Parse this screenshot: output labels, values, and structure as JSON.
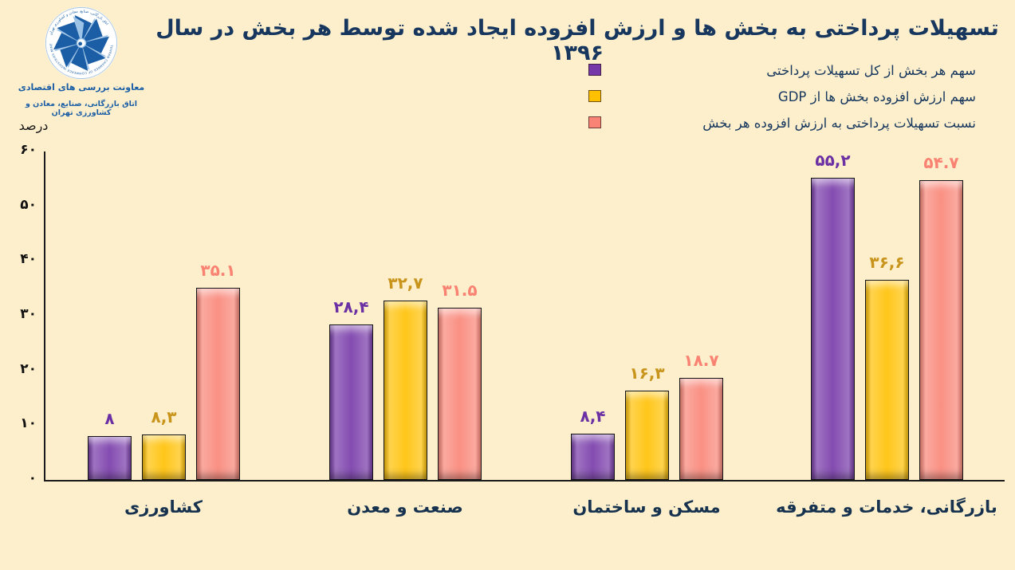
{
  "page": {
    "title": "تسهیلات پرداختی به بخش ها و ارزش افزوده ایجاد شده توسط هر بخش در سال ۱۳۹۶",
    "background_color": "#FDEFCB",
    "title_color": "#17375E"
  },
  "logo": {
    "name": "اتاق بازرگانی، صنایع، معادن و کشاورزی تهران",
    "caption_line1": "معاونت بررسی های اقتصادی",
    "caption_line2": "اتاق بازرگانی، صنایع، معادن و کشاورزی تهران",
    "ring_text_fa": "اتاق بازرگانی، صنایع، معادن و کشاورزی تهران",
    "ring_text_en": "TEHRAN CHAMBER OF COMMERCE INDUSTRIES MINES AND AGRICULTURE",
    "dark_blue": "#1B5EA6",
    "light_blue": "#9DC3E6"
  },
  "chart_data": {
    "type": "bar",
    "title": "تسهیلات پرداختی به بخش ها و ارزش افزوده ایجاد شده توسط هر بخش در سال ۱۳۹۶",
    "xlabel": "",
    "ylabel": "درصد",
    "ylim": [
      0,
      60
    ],
    "grid": false,
    "legend_position": "top-right",
    "yticks": [
      {
        "value": 60,
        "label": "۶۰"
      },
      {
        "value": 50,
        "label": "۵۰"
      },
      {
        "value": 40,
        "label": "۴۰"
      },
      {
        "value": 30,
        "label": "۳۰"
      },
      {
        "value": 20,
        "label": "۲۰"
      },
      {
        "value": 10,
        "label": "۱۰"
      },
      {
        "value": 0,
        "label": "۰"
      }
    ],
    "categories": [
      "کشاورزی",
      "صنعت و معدن",
      "مسکن و ساختمان",
      "بازرگانی، خدمات و متفرقه"
    ],
    "series": [
      {
        "key": "share-of-total-facilities",
        "name": "سهم هر بخش از کل تسهیلات پرداختی",
        "color": "#7638A8",
        "label_color": "#6B30A4",
        "values": [
          8,
          28.4,
          8.4,
          55.2
        ],
        "value_labels": [
          "۸",
          "۲۸,۴",
          "۸,۴",
          "۵۵,۲"
        ]
      },
      {
        "key": "value-added-share-of-gdp",
        "name": "سهم ارزش افزوده بخش ها از GDP",
        "color": "#FFC000",
        "label_color": "#C9941C",
        "values": [
          8.3,
          32.7,
          16.3,
          36.6
        ],
        "value_labels": [
          "۸,۳",
          "۳۲,۷",
          "۱۶,۳",
          "۳۶,۶"
        ]
      },
      {
        "key": "facilities-to-value-added-ratio",
        "name": "نسبت تسهیلات پرداختی به ارزش افزوده هر بخش",
        "color": "#F98476",
        "label_color": "#F98273",
        "values": [
          35.1,
          31.5,
          18.7,
          54.7
        ],
        "value_labels": [
          "۳۵.۱",
          "۳۱.۵",
          "۱۸.۷",
          "۵۴.۷"
        ]
      }
    ]
  }
}
